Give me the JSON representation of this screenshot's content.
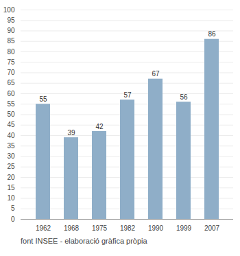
{
  "chart_data": {
    "type": "bar",
    "categories": [
      "1962",
      "1968",
      "1975",
      "1982",
      "1990",
      "1999",
      "2007"
    ],
    "values": [
      55,
      39,
      42,
      57,
      67,
      56,
      86
    ],
    "color": "#8faec8",
    "ylim": [
      0,
      100
    ],
    "yticks": [
      0,
      5,
      10,
      15,
      20,
      25,
      30,
      35,
      40,
      45,
      50,
      55,
      60,
      65,
      70,
      75,
      80,
      85,
      90,
      95,
      100
    ],
    "grid": true,
    "data_labels": true,
    "caption": "font INSEE - elaboració gràfica pròpia"
  }
}
